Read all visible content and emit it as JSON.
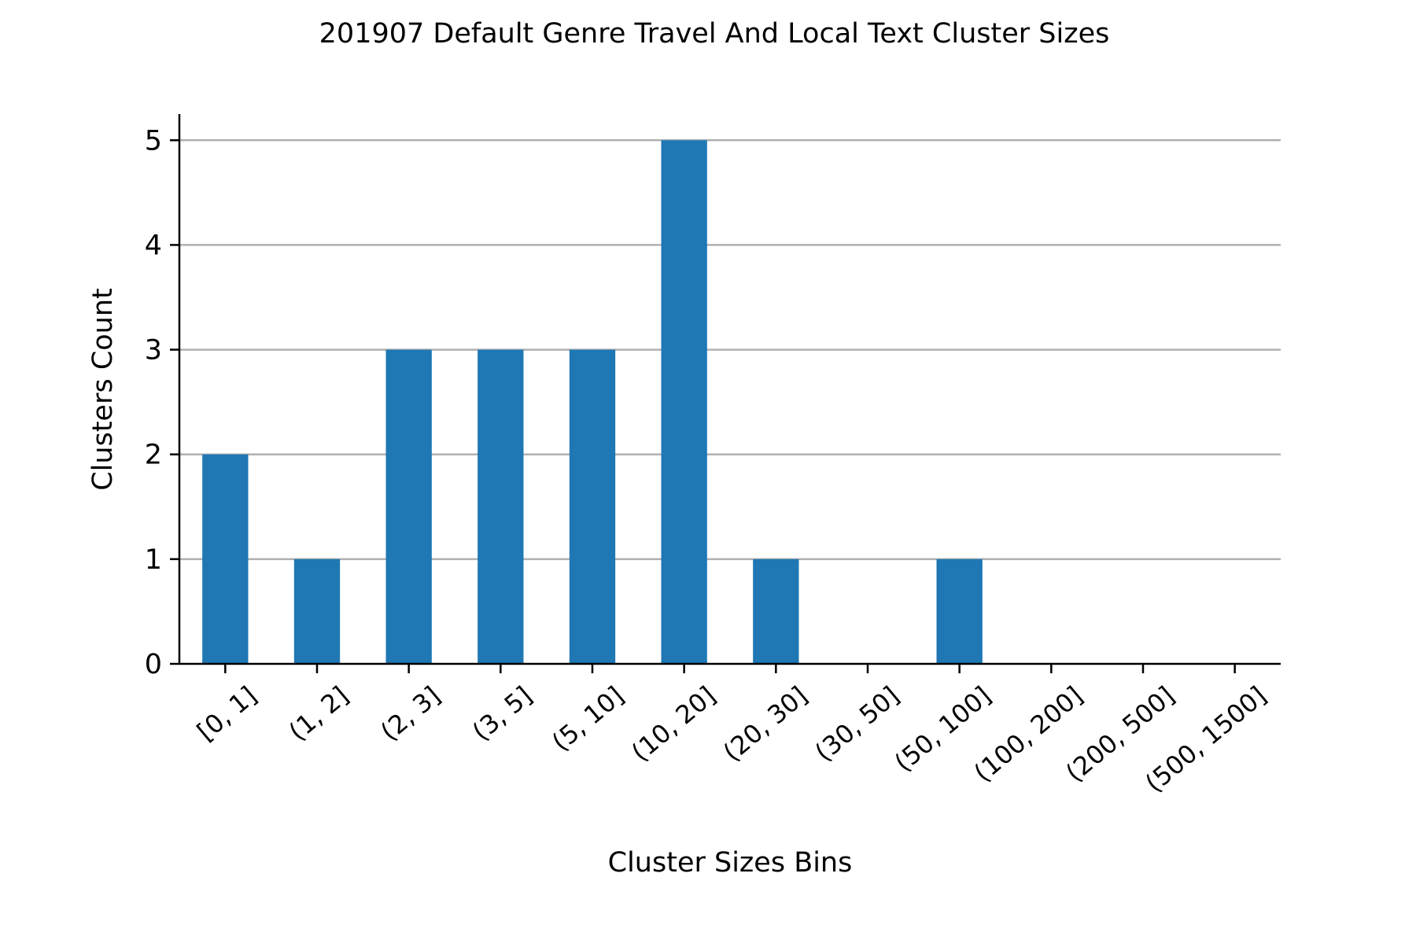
{
  "chart_data": {
    "type": "bar",
    "title": "201907 Default Genre Travel And Local Text Cluster Sizes",
    "xlabel": "Cluster Sizes Bins",
    "ylabel": "Clusters Count",
    "categories": [
      "[0, 1]",
      "(1, 2]",
      "(2, 3]",
      "(3, 5]",
      "(5, 10]",
      "(10, 20]",
      "(20, 30]",
      "(30, 50]",
      "(50, 100]",
      "(100, 200]",
      "(200, 500]",
      "(500, 1500]"
    ],
    "values": [
      2,
      1,
      3,
      3,
      3,
      5,
      1,
      0,
      1,
      0,
      0,
      0
    ],
    "ylim": [
      0,
      5.25
    ],
    "yticks": [
      0,
      1,
      2,
      3,
      4,
      5
    ],
    "grid": "horizontal",
    "bar_color": "#1f77b4",
    "grid_color": "#b0b0b0",
    "legend": "none"
  }
}
